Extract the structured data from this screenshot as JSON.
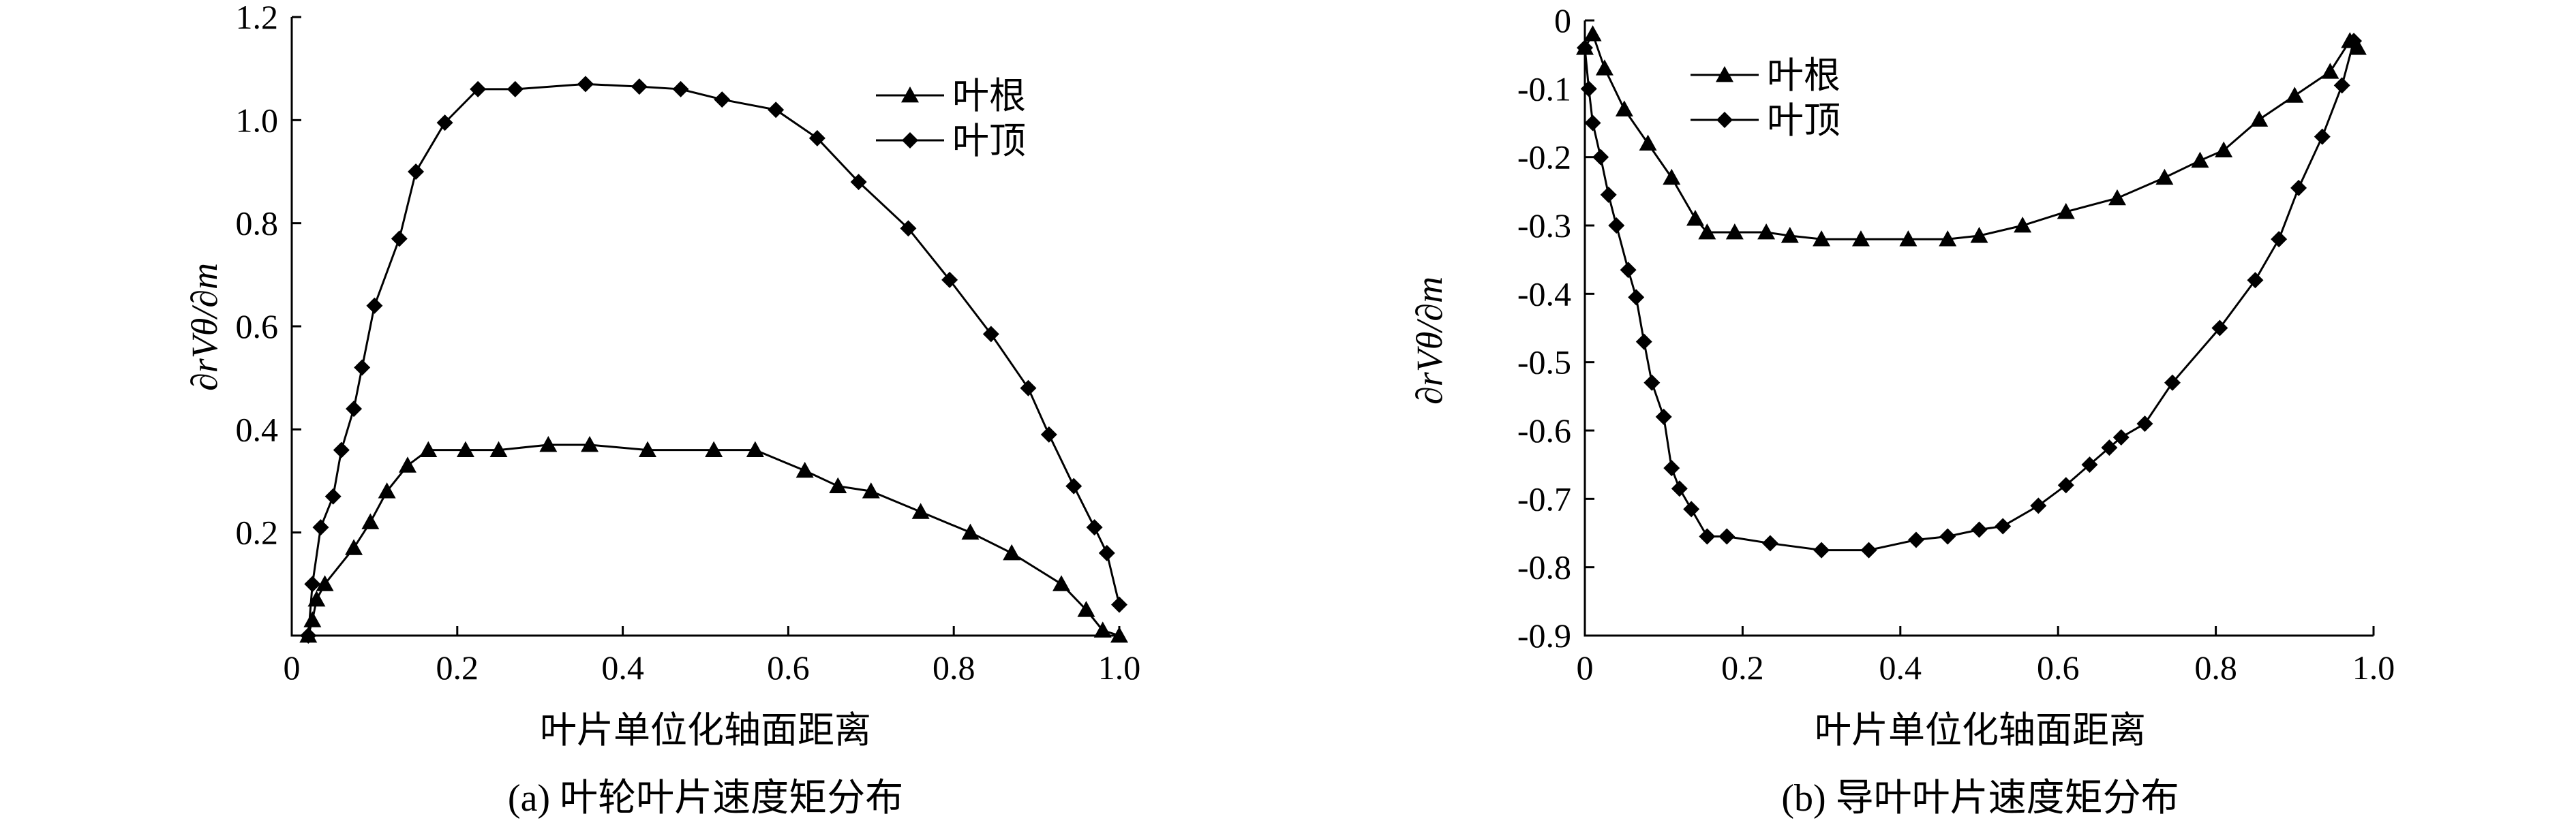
{
  "chart_data": [
    {
      "type": "line",
      "caption": "(a) 叶轮叶片速度矩分布",
      "xlabel": "叶片单位化轴面距离",
      "ylabel": "∂rVθ/∂m",
      "xlim": [
        0,
        1.0
      ],
      "ylim": [
        0,
        1.2
      ],
      "xticks": [
        "0",
        "0.2",
        "0.4",
        "0.6",
        "0.8",
        "1.0"
      ],
      "yticks": [
        "0.2",
        "0.4",
        "0.6",
        "0.8",
        "1.0",
        "1.2"
      ],
      "legend": "top-right",
      "series": [
        {
          "name": "叶根",
          "marker": "triangle",
          "x": [
            0.02,
            0.025,
            0.03,
            0.04,
            0.075,
            0.095,
            0.115,
            0.14,
            0.165,
            0.21,
            0.25,
            0.31,
            0.36,
            0.43,
            0.51,
            0.56,
            0.62,
            0.66,
            0.7,
            0.76,
            0.82,
            0.87,
            0.93,
            0.96,
            0.98,
            1.0
          ],
          "y": [
            0.0,
            0.03,
            0.07,
            0.1,
            0.17,
            0.22,
            0.28,
            0.33,
            0.36,
            0.36,
            0.36,
            0.37,
            0.37,
            0.36,
            0.36,
            0.36,
            0.32,
            0.29,
            0.28,
            0.24,
            0.2,
            0.16,
            0.1,
            0.05,
            0.01,
            0.0
          ]
        },
        {
          "name": "叶顶",
          "marker": "diamond",
          "x": [
            0.02,
            0.025,
            0.035,
            0.05,
            0.06,
            0.075,
            0.085,
            0.1,
            0.13,
            0.15,
            0.185,
            0.225,
            0.27,
            0.355,
            0.42,
            0.47,
            0.52,
            0.585,
            0.635,
            0.685,
            0.745,
            0.795,
            0.845,
            0.89,
            0.915,
            0.945,
            0.97,
            0.985,
            1.0
          ],
          "y": [
            0.0,
            0.1,
            0.21,
            0.27,
            0.36,
            0.44,
            0.52,
            0.64,
            0.77,
            0.9,
            0.995,
            1.06,
            1.06,
            1.07,
            1.065,
            1.06,
            1.04,
            1.02,
            0.965,
            0.88,
            0.79,
            0.69,
            0.585,
            0.48,
            0.39,
            0.29,
            0.21,
            0.16,
            0.06
          ]
        }
      ]
    },
    {
      "type": "line",
      "caption": "(b) 导叶叶片速度矩分布",
      "xlabel": "叶片单位化轴面距离",
      "ylabel": "∂rVθ/∂m",
      "xlim": [
        0,
        1.0
      ],
      "ylim": [
        -0.9,
        0
      ],
      "xticks": [
        "0",
        "0.2",
        "0.4",
        "0.6",
        "0.8",
        "1.0"
      ],
      "yticks": [
        "0",
        "-0.1",
        "-0.2",
        "-0.3",
        "-0.4",
        "-0.5",
        "-0.6",
        "-0.7",
        "-0.8",
        "-0.9"
      ],
      "legend": "top-left",
      "series": [
        {
          "name": "叶根",
          "marker": "triangle",
          "x": [
            0.0,
            0.01,
            0.025,
            0.05,
            0.08,
            0.11,
            0.14,
            0.155,
            0.19,
            0.23,
            0.26,
            0.3,
            0.35,
            0.41,
            0.46,
            0.5,
            0.555,
            0.61,
            0.675,
            0.735,
            0.78,
            0.81,
            0.855,
            0.9,
            0.945,
            0.97,
            0.98
          ],
          "y": [
            -0.04,
            -0.02,
            -0.07,
            -0.13,
            -0.18,
            -0.23,
            -0.29,
            -0.31,
            -0.31,
            -0.31,
            -0.315,
            -0.32,
            -0.32,
            -0.32,
            -0.32,
            -0.315,
            -0.3,
            -0.28,
            -0.26,
            -0.23,
            -0.205,
            -0.19,
            -0.145,
            -0.11,
            -0.075,
            -0.03,
            -0.04
          ]
        },
        {
          "name": "叶顶",
          "marker": "diamond",
          "x": [
            0.0,
            0.005,
            0.01,
            0.02,
            0.03,
            0.04,
            0.055,
            0.065,
            0.075,
            0.085,
            0.1,
            0.11,
            0.12,
            0.135,
            0.155,
            0.18,
            0.235,
            0.3,
            0.36,
            0.42,
            0.46,
            0.5,
            0.53,
            0.575,
            0.61,
            0.64,
            0.665,
            0.68,
            0.71,
            0.745,
            0.805,
            0.85,
            0.88,
            0.905,
            0.935,
            0.96,
            0.975
          ],
          "y": [
            -0.04,
            -0.1,
            -0.15,
            -0.2,
            -0.255,
            -0.3,
            -0.365,
            -0.405,
            -0.47,
            -0.53,
            -0.58,
            -0.655,
            -0.685,
            -0.715,
            -0.755,
            -0.755,
            -0.765,
            -0.775,
            -0.775,
            -0.76,
            -0.755,
            -0.745,
            -0.74,
            -0.71,
            -0.68,
            -0.65,
            -0.625,
            -0.61,
            -0.59,
            -0.53,
            -0.45,
            -0.38,
            -0.32,
            -0.245,
            -0.17,
            -0.095,
            -0.03
          ]
        }
      ]
    }
  ]
}
